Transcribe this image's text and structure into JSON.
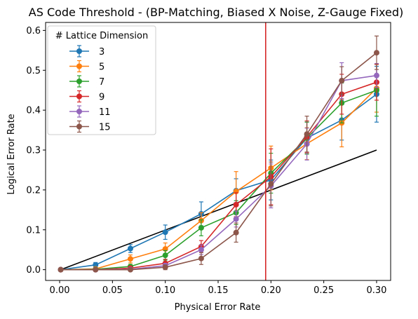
{
  "chart_data": {
    "type": "line",
    "title": "AS Code Threshold - (BP-Matching, Biased X Noise, Z-Gauge Fixed)",
    "xlabel": "Physical Error Rate",
    "ylabel": "Logical Error Rate",
    "xlim": [
      -0.0133,
      0.3133
    ],
    "ylim": [
      -0.027,
      0.62
    ],
    "xticks": [
      0.0,
      0.05,
      0.1,
      0.15,
      0.2,
      0.25,
      0.3
    ],
    "xtick_labels": [
      "0.00",
      "0.05",
      "0.10",
      "0.15",
      "0.20",
      "0.25",
      "0.30"
    ],
    "yticks": [
      0.0,
      0.1,
      0.2,
      0.3,
      0.4,
      0.5,
      0.6
    ],
    "ytick_labels": [
      "0.0",
      "0.1",
      "0.2",
      "0.3",
      "0.4",
      "0.5",
      "0.6"
    ],
    "grid": false,
    "legend": {
      "title": "# Lattice Dimension",
      "placement": "top-left"
    },
    "x": [
      0.001,
      0.034,
      0.067,
      0.1,
      0.134,
      0.167,
      0.2,
      0.234,
      0.267,
      0.3
    ],
    "series": [
      {
        "name": "3",
        "color": "#1f77b4",
        "values": [
          0.0,
          0.012,
          0.053,
          0.094,
          0.14,
          0.198,
          0.225,
          0.33,
          0.375,
          0.44
        ],
        "errors": [
          0.001,
          0.006,
          0.01,
          0.018,
          0.03,
          0.03,
          0.05,
          0.04,
          0.05,
          0.07
        ]
      },
      {
        "name": "5",
        "color": "#ff7f0e",
        "values": [
          0.0,
          0.002,
          0.027,
          0.052,
          0.123,
          0.196,
          0.255,
          0.316,
          0.368,
          0.455
        ],
        "errors": [
          0.001,
          0.003,
          0.01,
          0.015,
          0.02,
          0.05,
          0.055,
          0.04,
          0.06,
          0.06
        ]
      },
      {
        "name": "7",
        "color": "#2ca02c",
        "values": [
          0.0,
          0.001,
          0.008,
          0.036,
          0.105,
          0.143,
          0.242,
          0.33,
          0.418,
          0.45
        ],
        "errors": [
          0.001,
          0.002,
          0.005,
          0.012,
          0.02,
          0.03,
          0.05,
          0.04,
          0.05,
          0.065
        ]
      },
      {
        "name": "9",
        "color": "#d62728",
        "values": [
          0.0,
          0.0,
          0.004,
          0.016,
          0.058,
          0.163,
          0.233,
          0.333,
          0.44,
          0.47
        ],
        "errors": [
          0.001,
          0.001,
          0.003,
          0.01,
          0.015,
          0.03,
          0.07,
          0.04,
          0.05,
          0.045
        ]
      },
      {
        "name": "11",
        "color": "#9467bd",
        "values": [
          0.0,
          0.0,
          0.001,
          0.01,
          0.05,
          0.127,
          0.21,
          0.315,
          0.474,
          0.487
        ],
        "errors": [
          0.001,
          0.001,
          0.002,
          0.006,
          0.012,
          0.02,
          0.055,
          0.04,
          0.045,
          0.03
        ]
      },
      {
        "name": "15",
        "color": "#8c564b",
        "values": [
          0.0,
          0.0,
          0.0,
          0.006,
          0.028,
          0.093,
          0.215,
          0.34,
          0.474,
          0.544
        ],
        "errors": [
          0.001,
          0.001,
          0.001,
          0.006,
          0.015,
          0.024,
          0.055,
          0.045,
          0.035,
          0.042
        ]
      }
    ],
    "reference_line": {
      "color": "#000000",
      "points": [
        [
          0.001,
          0.0
        ],
        [
          0.3,
          0.3
        ]
      ]
    },
    "threshold_line": {
      "x": 0.195,
      "color": "#d62728"
    }
  }
}
